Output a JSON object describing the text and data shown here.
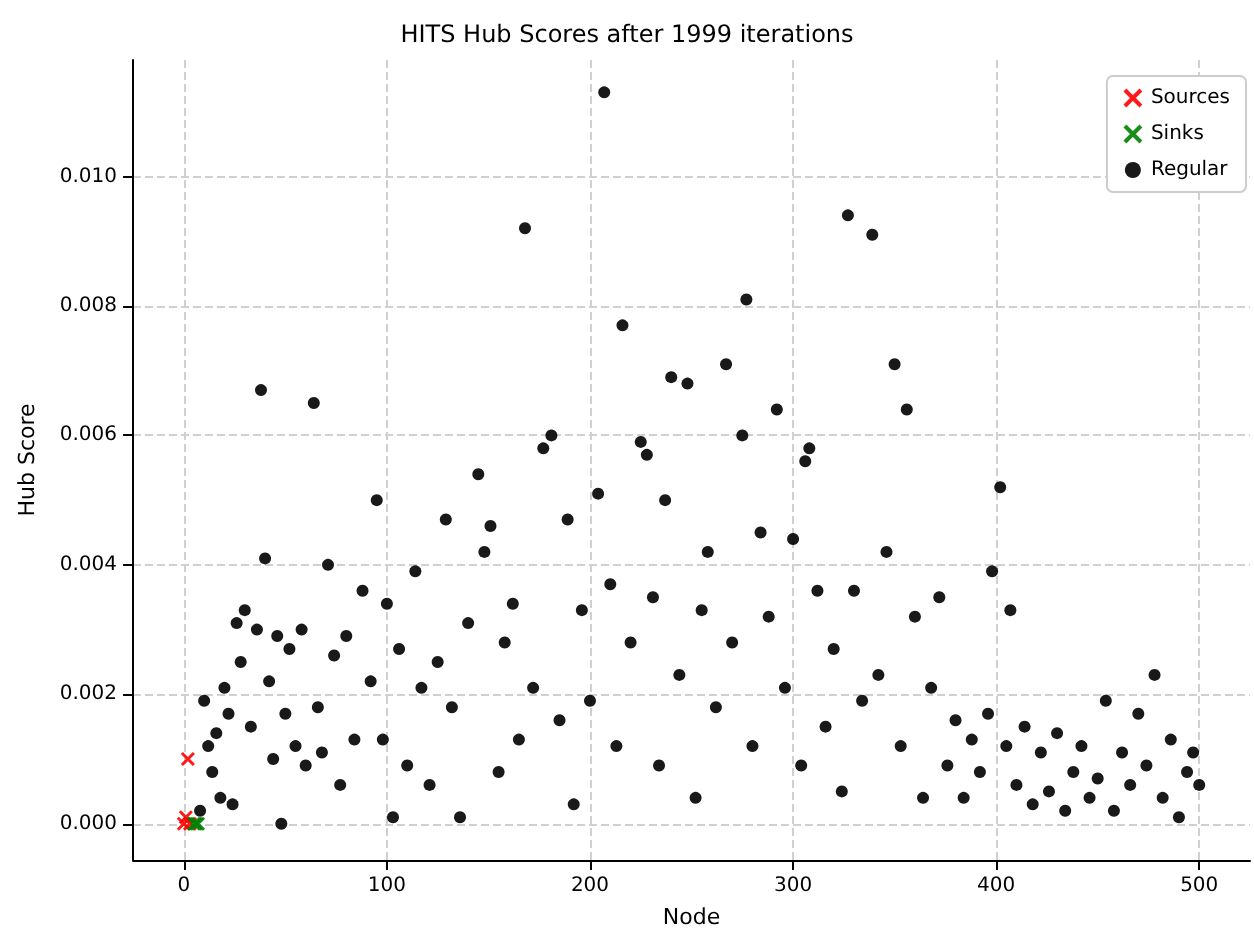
{
  "chart_data": {
    "type": "scatter",
    "title": "HITS Hub Scores after 1999 iterations",
    "xlabel": "Node",
    "ylabel": "Hub Score",
    "xlim": [
      -25,
      525
    ],
    "xticks": [
      0,
      100,
      200,
      300,
      400,
      500
    ],
    "ylim": [
      -0.00056,
      0.0118
    ],
    "yticks": [
      {
        "value": 0,
        "label": "0.000"
      },
      {
        "value": 0.002,
        "label": "0.002"
      },
      {
        "value": 0.004,
        "label": "0.004"
      },
      {
        "value": 0.006,
        "label": "0.006"
      },
      {
        "value": 0.008,
        "label": "0.008"
      },
      {
        "value": 0.01,
        "label": "0.010"
      }
    ],
    "grid": true,
    "legend": "top right",
    "series": [
      {
        "name": "Sources",
        "color": "#ff0000",
        "marker": "cross",
        "x": [
          0,
          1,
          2,
          3
        ],
        "values": [
          0.0,
          0.0001,
          0.001,
          0.0
        ]
      },
      {
        "name": "Sinks",
        "color": "#008000",
        "marker": "cross",
        "x": [
          5,
          6,
          7
        ],
        "values": [
          0.0,
          0.0,
          0.0
        ]
      },
      {
        "name": "Regular",
        "color": "#000000",
        "marker": "circle",
        "x": [
          8,
          10,
          12,
          14,
          16,
          18,
          20,
          22,
          24,
          26,
          28,
          30,
          33,
          36,
          38,
          40,
          42,
          44,
          46,
          48,
          50,
          52,
          55,
          58,
          60,
          64,
          66,
          68,
          71,
          74,
          77,
          80,
          84,
          88,
          92,
          95,
          98,
          100,
          103,
          106,
          110,
          114,
          117,
          121,
          125,
          129,
          132,
          136,
          140,
          145,
          148,
          151,
          155,
          158,
          162,
          165,
          168,
          172,
          177,
          181,
          185,
          189,
          192,
          196,
          200,
          204,
          207,
          210,
          213,
          216,
          220,
          225,
          228,
          231,
          234,
          237,
          240,
          244,
          248,
          252,
          255,
          258,
          262,
          267,
          270,
          275,
          277,
          280,
          284,
          288,
          292,
          296,
          300,
          304,
          306,
          308,
          312,
          316,
          320,
          324,
          327,
          330,
          334,
          339,
          342,
          346,
          350,
          353,
          356,
          360,
          364,
          368,
          372,
          376,
          380,
          384,
          388,
          392,
          396,
          398,
          402,
          405,
          407,
          410,
          414,
          418,
          422,
          426,
          430,
          434,
          438,
          442,
          446,
          450,
          454,
          458,
          462,
          466,
          470,
          474,
          478,
          482,
          486,
          490,
          494,
          497,
          500
        ],
        "values": [
          0.0002,
          0.0019,
          0.0012,
          0.0008,
          0.0014,
          0.0004,
          0.0021,
          0.0017,
          0.0003,
          0.0031,
          0.0025,
          0.0033,
          0.0015,
          0.003,
          0.0067,
          0.0041,
          0.0022,
          0.001,
          0.0029,
          0.0,
          0.0017,
          0.0027,
          0.0012,
          0.003,
          0.0009,
          0.0065,
          0.0018,
          0.0011,
          0.004,
          0.0026,
          0.0006,
          0.0029,
          0.0013,
          0.0036,
          0.0022,
          0.005,
          0.0013,
          0.0034,
          0.0001,
          0.0027,
          0.0009,
          0.0039,
          0.0021,
          0.0006,
          0.0025,
          0.0047,
          0.0018,
          0.0001,
          0.0031,
          0.0054,
          0.0042,
          0.0046,
          0.0008,
          0.0028,
          0.0034,
          0.0013,
          0.0092,
          0.0021,
          0.0058,
          0.006,
          0.0016,
          0.0047,
          0.0003,
          0.0033,
          0.0019,
          0.0051,
          0.0113,
          0.0037,
          0.0012,
          0.0077,
          0.0028,
          0.0059,
          0.0057,
          0.0035,
          0.0009,
          0.005,
          0.0069,
          0.0023,
          0.0068,
          0.0004,
          0.0033,
          0.0042,
          0.0018,
          0.0071,
          0.0028,
          0.006,
          0.0081,
          0.0012,
          0.0045,
          0.0032,
          0.0064,
          0.0021,
          0.0044,
          0.0009,
          0.0056,
          0.0058,
          0.0036,
          0.0015,
          0.0027,
          0.0005,
          0.0094,
          0.0036,
          0.0019,
          0.0091,
          0.0023,
          0.0042,
          0.0071,
          0.0012,
          0.0064,
          0.0032,
          0.0004,
          0.0021,
          0.0035,
          0.0009,
          0.0016,
          0.0004,
          0.0013,
          0.0008,
          0.0017,
          0.0039,
          0.0052,
          0.0012,
          0.0033,
          0.0006,
          0.0015,
          0.0003,
          0.0011,
          0.0005,
          0.0014,
          0.0002,
          0.0008,
          0.0012,
          0.0004,
          0.0007,
          0.0019,
          0.0002,
          0.0011,
          0.0006,
          0.0017,
          0.0009,
          0.0023,
          0.0004,
          0.0013,
          0.0001,
          0.0008,
          0.0011,
          0.0006
        ]
      }
    ]
  }
}
